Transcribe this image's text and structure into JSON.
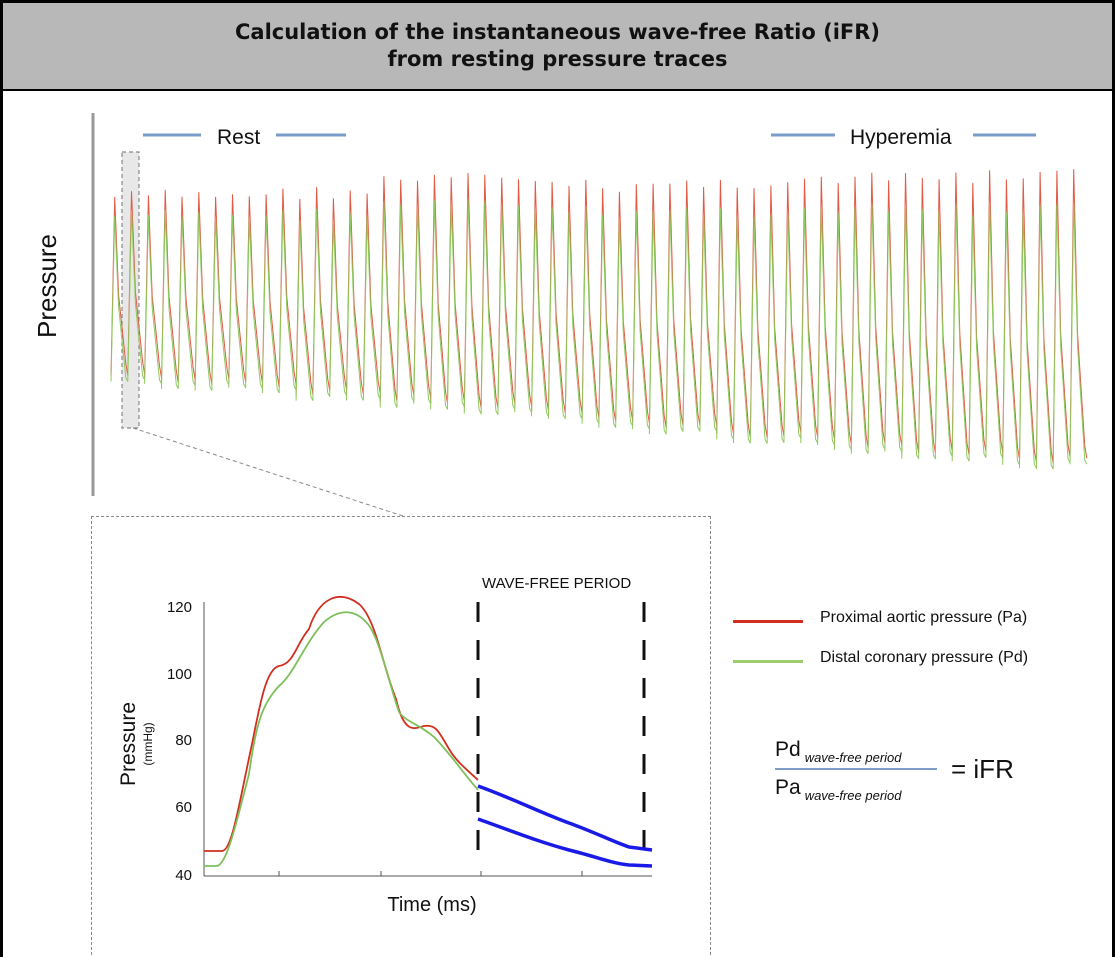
{
  "header": {
    "title_line1": "Calculation of the instantaneous wave-free Ratio (iFR)",
    "title_line2": "from resting pressure traces"
  },
  "overview": {
    "y_axis_label": "Pressure",
    "phase_rest": "Rest",
    "phase_hyperemia": "Hyperemia",
    "colors": {
      "pa": "#e05a46",
      "pd": "#8fca5e",
      "phase_line": "#7a9cc8"
    }
  },
  "inset": {
    "wave_free_label": "WAVE-FREE PERIOD",
    "y_axis_label": "Pressure",
    "y_axis_unit": "(mmHg)",
    "x_axis_label": "Time (ms)",
    "y_ticks": [
      120,
      100,
      80,
      60,
      40
    ],
    "colors": {
      "pa": "#d12f1f",
      "pd": "#7dbf5a",
      "wave_free": "#1a1ae6"
    }
  },
  "legend": {
    "pa_label": "Proximal aortic pressure  (Pa)",
    "pd_label": "Distal coronary pressure  (Pd)"
  },
  "formula": {
    "numerator": "Pd",
    "numerator_sub": "wave-free period",
    "denominator": "Pa",
    "denominator_sub": "wave-free period",
    "result": "= iFR"
  }
}
